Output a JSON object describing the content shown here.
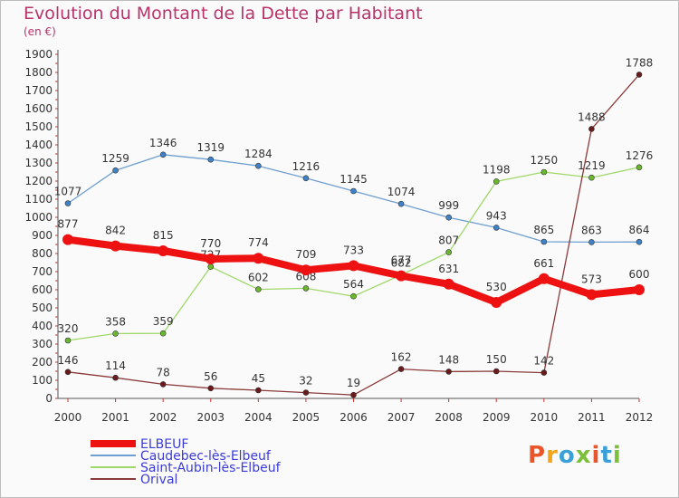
{
  "title": "Evolution du Montant de la Dette par Habitant",
  "subtitle": "(en €)",
  "logo": {
    "text": "Proxiti",
    "colors": [
      "#e8562a",
      "#f2a51a",
      "#3aa0d8",
      "#7bbf3a",
      "#e8562a",
      "#3aa0d8",
      "#7bbf3a"
    ]
  },
  "chart_data": {
    "type": "line",
    "x": [
      "2000",
      "2001",
      "2002",
      "2003",
      "2004",
      "2005",
      "2006",
      "2007",
      "2008",
      "2009",
      "2010",
      "2011",
      "2012"
    ],
    "ylim": [
      0,
      1900
    ],
    "yticks": [
      0,
      100,
      200,
      300,
      400,
      500,
      600,
      700,
      800,
      900,
      1000,
      1100,
      1200,
      1300,
      1400,
      1500,
      1600,
      1700,
      1800,
      1900
    ],
    "grid": false,
    "legend_position": "bottom-left",
    "series": [
      {
        "name": "Caudebec-lès-Elbeuf",
        "color": "#6f9fd0",
        "dot": "#3f82c8",
        "width": 1.3,
        "label_pos": "above",
        "values": [
          1077,
          1259,
          1346,
          1319,
          1284,
          1216,
          1145,
          1074,
          999,
          943,
          865,
          863,
          864
        ]
      },
      {
        "name": "Saint-Aubin-lès-Elbeuf",
        "color": "#9fd86a",
        "dot": "#6ab82e",
        "width": 1.3,
        "label_pos": "above",
        "values": [
          320,
          358,
          359,
          727,
          602,
          608,
          564,
          682,
          807,
          1198,
          1250,
          1219,
          1276
        ]
      },
      {
        "name": "Orival",
        "color": "#8a3a3a",
        "dot": "#6a1a1a",
        "width": 1.3,
        "label_pos": "above",
        "values": [
          146,
          114,
          78,
          56,
          45,
          32,
          19,
          162,
          148,
          150,
          142,
          1488,
          1788
        ]
      },
      {
        "name": "ELBEUF",
        "color": "#ee1111",
        "dot": "#ee1111",
        "width": 8,
        "label_pos": "above",
        "values": [
          877,
          842,
          815,
          770,
          774,
          709,
          733,
          677,
          631,
          530,
          661,
          573,
          600
        ]
      }
    ],
    "legend_order": [
      "ELBEUF",
      "Caudebec-lès-Elbeuf",
      "Saint-Aubin-lès-Elbeuf",
      "Orival"
    ]
  }
}
